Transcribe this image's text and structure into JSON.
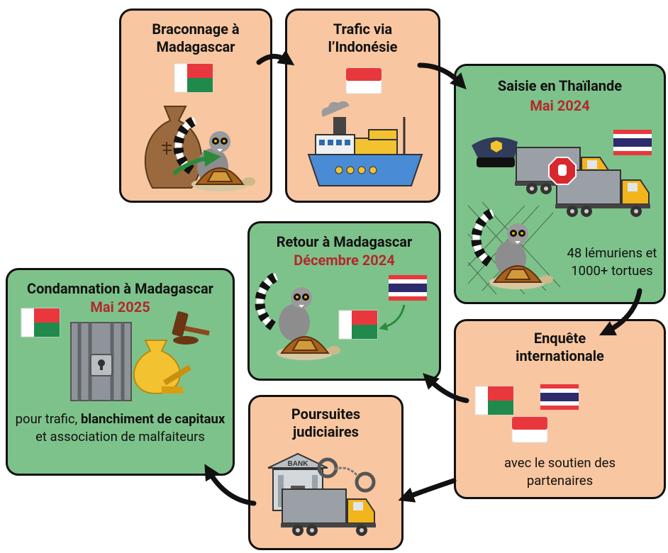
{
  "steps": [
    {
      "title": "Braconnage à Madagascar"
    },
    {
      "title": "Trafic via l’Indonésie"
    },
    {
      "title": "Saisie en Thaïlande",
      "date": "Mai 2024",
      "text": "48 lémuriens et 1000+ tortues"
    },
    {
      "title": "Enquête internationale",
      "text": "avec le soutien des partenaires"
    },
    {
      "title": "Poursuites judiciaires",
      "sign": "BANK"
    },
    {
      "title": "Retour à Madagascar",
      "date": "Décembre 2024"
    },
    {
      "title": "Condamnation à Madagascar",
      "date": "Mai 2025",
      "text_parts": [
        "pour trafic, ",
        "blanchiment de capitaux",
        " et association de malfaiteurs"
      ]
    }
  ]
}
